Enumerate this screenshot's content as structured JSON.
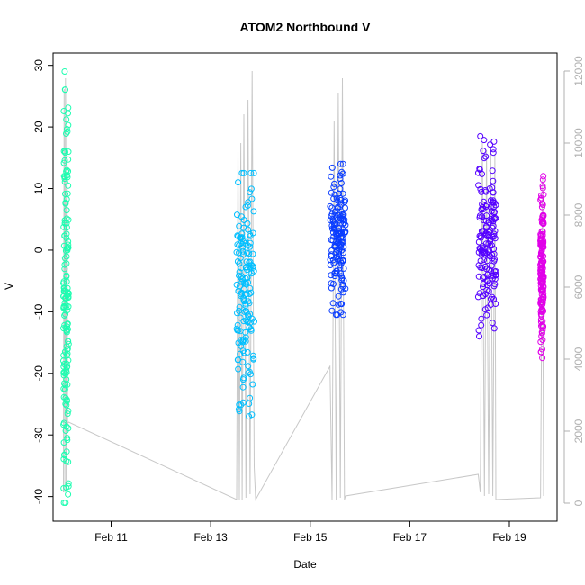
{
  "chart_data": {
    "type": "scatter",
    "title": "ATOM2 Northbound V",
    "xlabel": "Date",
    "ylabel": "V",
    "xlim": [
      "2021-02-09T20:00",
      "2021-02-19T23:00"
    ],
    "ylim": [
      -44,
      32
    ],
    "x_ticks": [
      {
        "value": "2021-02-11",
        "label": "Feb 11"
      },
      {
        "value": "2021-02-13",
        "label": "Feb 13"
      },
      {
        "value": "2021-02-15",
        "label": "Feb 15"
      },
      {
        "value": "2021-02-17",
        "label": "Feb 17"
      },
      {
        "value": "2021-02-19",
        "label": "Feb 19"
      }
    ],
    "y_ticks": [
      30,
      20,
      10,
      0,
      -10,
      -20,
      -30,
      -40
    ],
    "y2_ticks": [
      12000,
      10000,
      8000,
      6000,
      4000,
      2000,
      0
    ],
    "y2lim": [
      -500,
      12500
    ],
    "series": [
      {
        "color": "#1dfdb0",
        "x_start": "2021-02-10T01:00",
        "x_end": "2021-02-10T03:30",
        "y_min": -41,
        "y_max": 29
      },
      {
        "color": "#00bfff",
        "x_start": "2021-02-13T12:30",
        "x_end": "2021-02-13T21:00",
        "y_min": -27,
        "y_max": 12.5
      },
      {
        "color": "#0a3dff",
        "x_start": "2021-02-15T09:30",
        "x_end": "2021-02-15T17:00",
        "y_min": -10.5,
        "y_max": 14
      },
      {
        "color": "#5500ff",
        "x_start": "2021-02-18T09:00",
        "x_end": "2021-02-18T17:30",
        "y_min": -14,
        "y_max": 18.5
      },
      {
        "color": "#e000e8",
        "x_start": "2021-02-19T15:00",
        "x_end": "2021-02-19T16:30",
        "y_min": -17.5,
        "y_max": 12
      }
    ],
    "secondary_line": {
      "color": "#c8c8c8",
      "points": [
        [
          "2021-02-10T01:00",
          300
        ],
        [
          "2021-02-10T01:20",
          11500
        ],
        [
          "2021-02-10T01:40",
          300
        ],
        [
          "2021-02-10T02:00",
          11800
        ],
        [
          "2021-02-10T02:20",
          400
        ],
        [
          "2021-02-10T02:40",
          11600
        ],
        [
          "2021-02-10T03:00",
          2200
        ],
        [
          "2021-02-10T03:30",
          2250
        ],
        [
          "2021-02-13T12:30",
          100
        ],
        [
          "2021-02-13T13:10",
          9800
        ],
        [
          "2021-02-13T13:50",
          100
        ],
        [
          "2021-02-13T14:30",
          10000
        ],
        [
          "2021-02-13T15:10",
          100
        ],
        [
          "2021-02-13T16:00",
          10800
        ],
        [
          "2021-02-13T17:00",
          150
        ],
        [
          "2021-02-13T18:00",
          11200
        ],
        [
          "2021-02-13T19:00",
          250
        ],
        [
          "2021-02-13T20:00",
          12000
        ],
        [
          "2021-02-13T21:00",
          1000
        ],
        [
          "2021-02-13T21:40",
          100
        ],
        [
          "2021-02-15T09:30",
          3800
        ],
        [
          "2021-02-15T10:30",
          100
        ],
        [
          "2021-02-15T11:30",
          10600
        ],
        [
          "2021-02-15T12:30",
          100
        ],
        [
          "2021-02-15T13:30",
          11400
        ],
        [
          "2021-02-15T14:30",
          150
        ],
        [
          "2021-02-15T15:30",
          11800
        ],
        [
          "2021-02-15T16:30",
          100
        ],
        [
          "2021-02-15T17:00",
          200
        ],
        [
          "2021-02-18T09:00",
          800
        ],
        [
          "2021-02-18T10:00",
          300
        ],
        [
          "2021-02-18T11:00",
          10000
        ],
        [
          "2021-02-18T12:00",
          200
        ],
        [
          "2021-02-18T13:00",
          9800
        ],
        [
          "2021-02-18T14:00",
          250
        ],
        [
          "2021-02-18T15:00",
          9900
        ],
        [
          "2021-02-18T16:00",
          200
        ],
        [
          "2021-02-18T17:00",
          9700
        ],
        [
          "2021-02-18T17:30",
          100
        ],
        [
          "2021-02-19T15:00",
          150
        ],
        [
          "2021-02-19T16:00",
          9000
        ],
        [
          "2021-02-19T16:30",
          200
        ]
      ]
    }
  }
}
